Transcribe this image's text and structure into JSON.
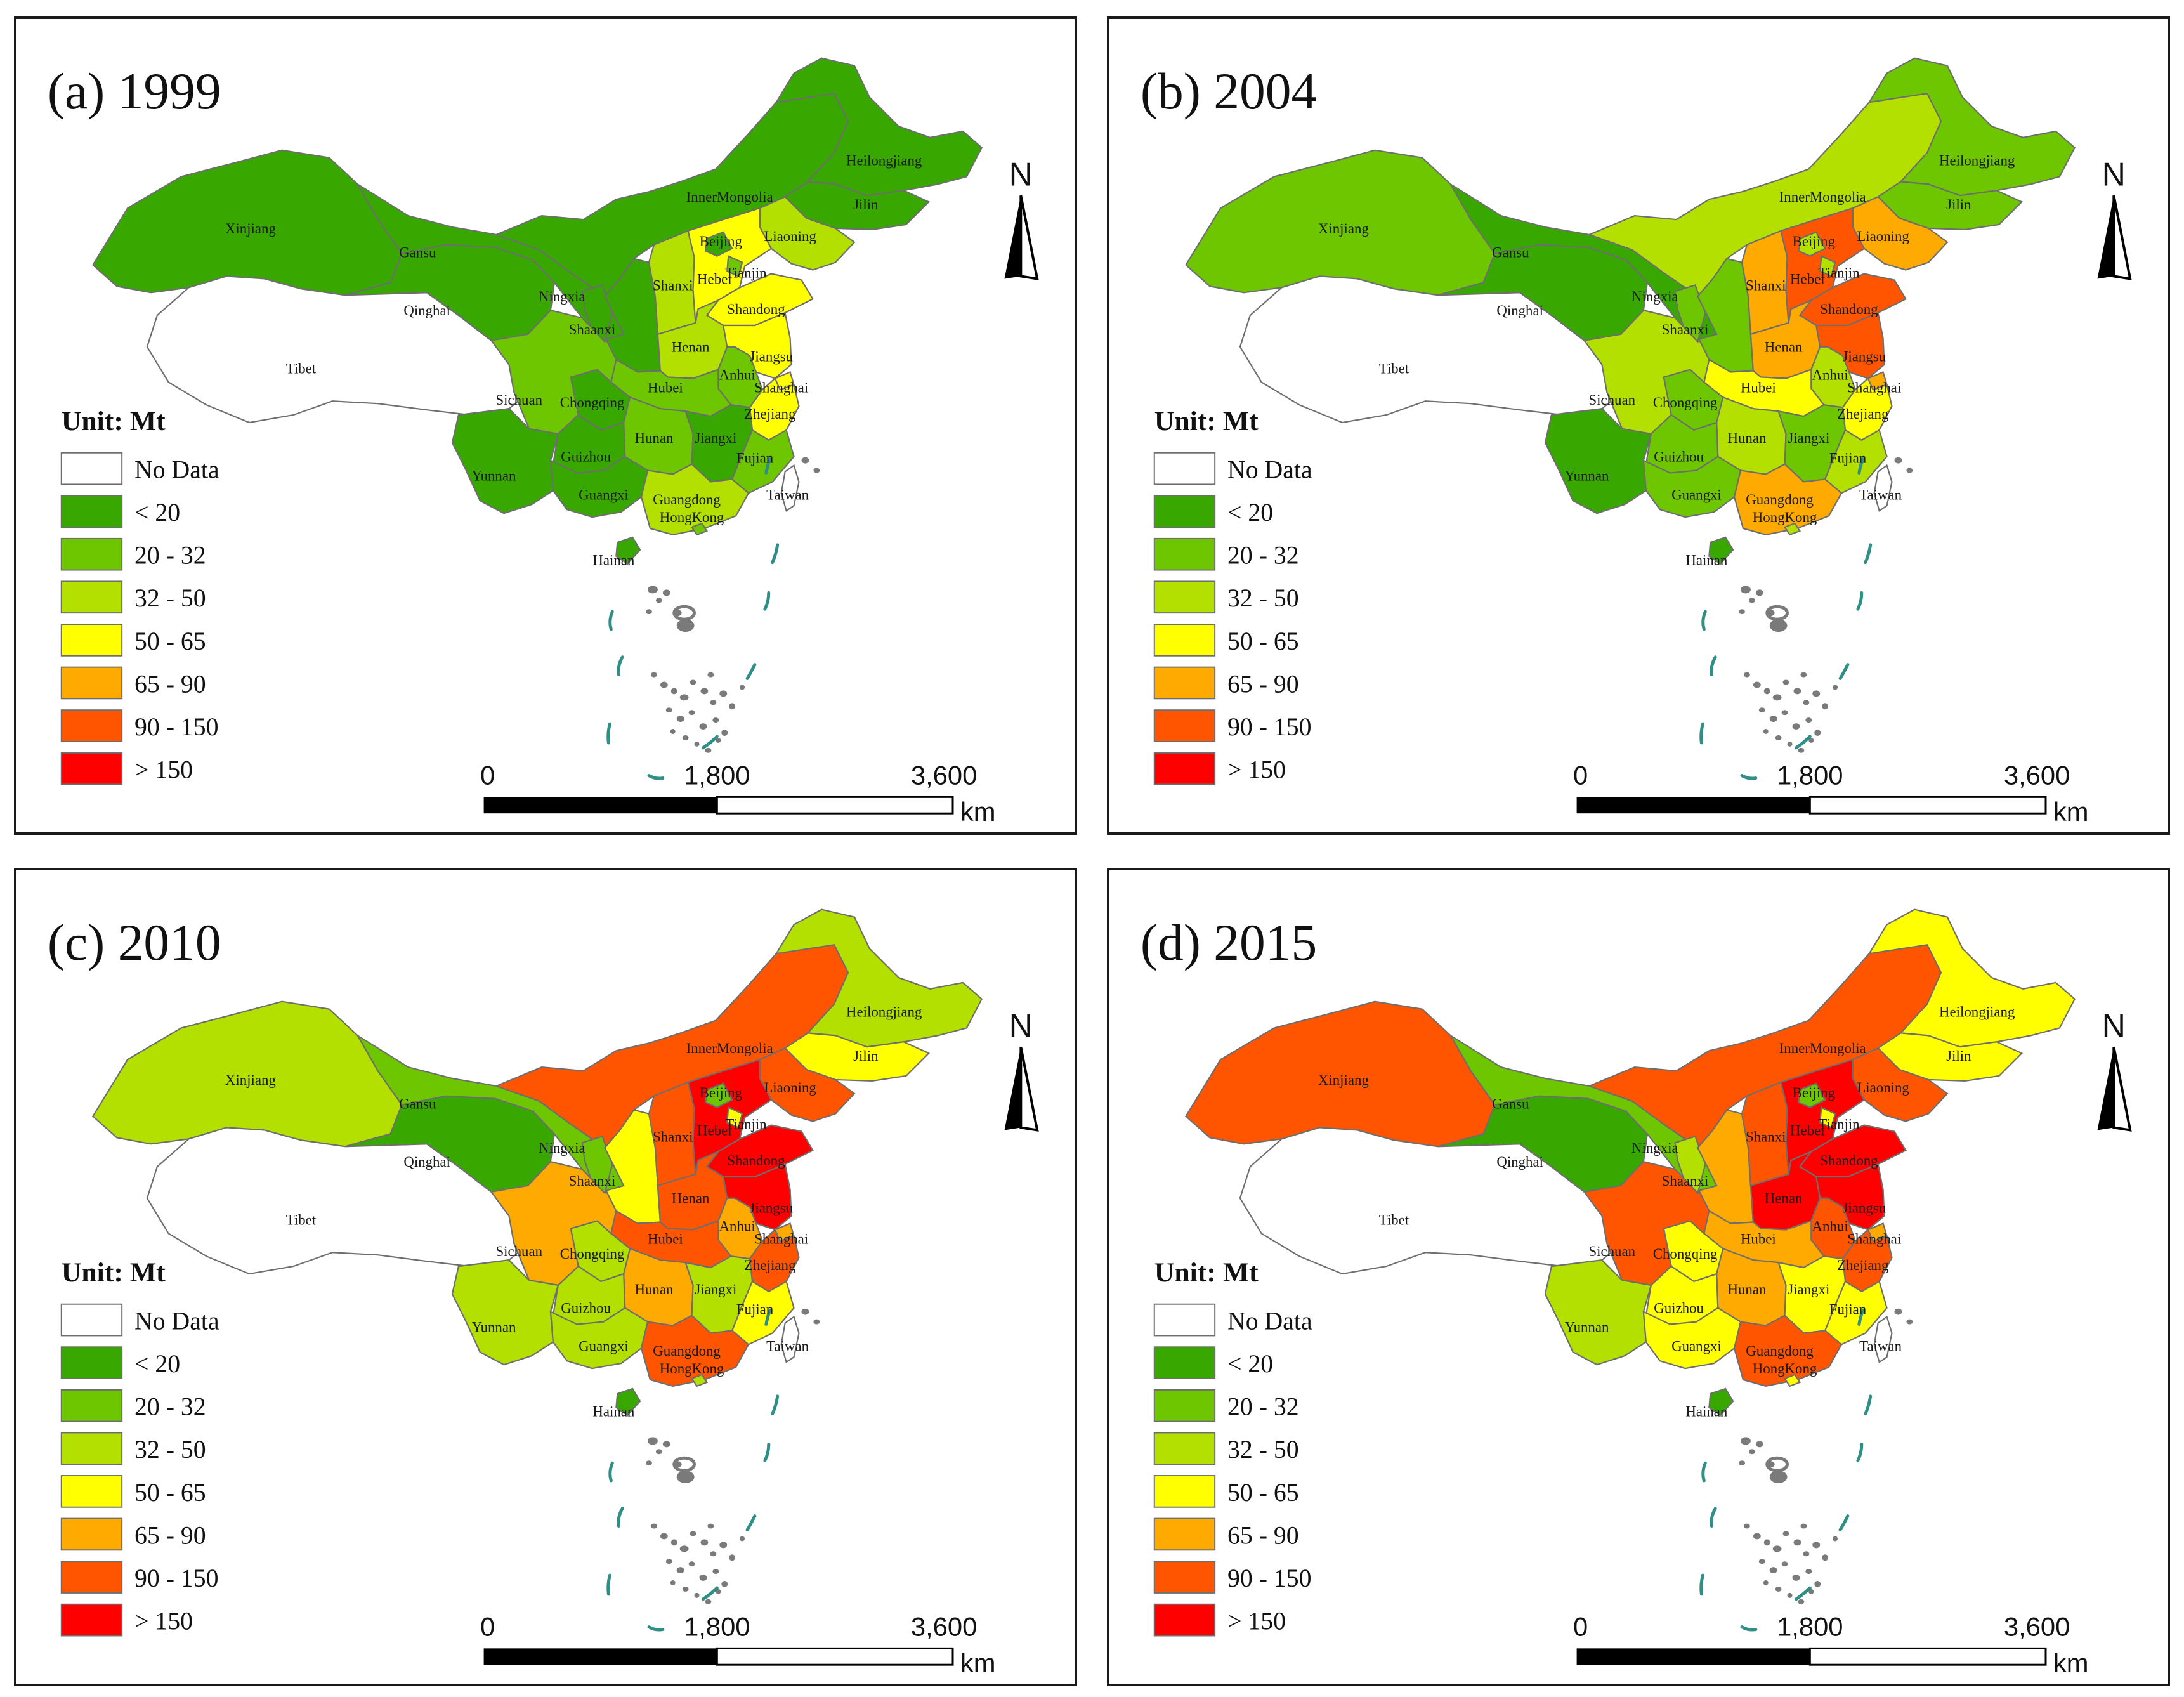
{
  "figure": {
    "legend_title": "Unit: Mt",
    "scale_bar": {
      "labels": [
        "0",
        "1,800",
        "3,600"
      ],
      "unit": "km"
    },
    "north_label": "N"
  },
  "legend": [
    {
      "label": "No Data",
      "color": "#ffffff"
    },
    {
      "label": "< 20",
      "color": "#38a800"
    },
    {
      "label": "20 - 32",
      "color": "#6ec600"
    },
    {
      "label": "32 - 50",
      "color": "#b4e000"
    },
    {
      "label": "50 - 65",
      "color": "#ffff00"
    },
    {
      "label": "65 - 90",
      "color": "#ffaa00"
    },
    {
      "label": "90 - 150",
      "color": "#ff5500"
    },
    {
      "label": "> 150",
      "color": "#ff0000"
    }
  ],
  "panels": [
    {
      "title": "(a) 1999",
      "classes": {
        "Xinjiang": 1,
        "Tibet": 0,
        "Qinghai": 1,
        "Gansu": 1,
        "InnerMongolia": 1,
        "Heilongjiang": 1,
        "Jilin": 1,
        "Liaoning": 3,
        "Ningxia": 1,
        "Shaanxi": 1,
        "Shanxi": 3,
        "Beijing": 1,
        "Hebei": 4,
        "Tianjin": 2,
        "Shandong": 4,
        "Henan": 3,
        "Jiangsu": 4,
        "Anhui": 2,
        "Shanghai": 4,
        "Hubei": 2,
        "Zhejiang": 4,
        "Sichuan": 2,
        "Chongqing": 1,
        "Hunan": 2,
        "Jiangxi": 1,
        "Fujian": 2,
        "Yunnan": 1,
        "Guizhou": 1,
        "Guangxi": 1,
        "Guangdong": 3,
        "HongKong": 2,
        "Taiwan": 0,
        "Hainan": 1
      }
    },
    {
      "title": "(b) 2004",
      "classes": {
        "Xinjiang": 2,
        "Tibet": 0,
        "Qinghai": 1,
        "Gansu": 1,
        "InnerMongolia": 3,
        "Heilongjiang": 2,
        "Jilin": 2,
        "Liaoning": 5,
        "Ningxia": 2,
        "Shaanxi": 2,
        "Shanxi": 5,
        "Beijing": 3,
        "Hebei": 6,
        "Tianjin": 3,
        "Shandong": 6,
        "Henan": 5,
        "Jiangsu": 6,
        "Anhui": 3,
        "Shanghai": 5,
        "Hubei": 4,
        "Zhejiang": 4,
        "Sichuan": 3,
        "Chongqing": 2,
        "Hunan": 3,
        "Jiangxi": 2,
        "Fujian": 3,
        "Yunnan": 1,
        "Guizhou": 2,
        "Guangxi": 2,
        "Guangdong": 5,
        "HongKong": 3,
        "Taiwan": 0,
        "Hainan": 1
      }
    },
    {
      "title": "(c) 2010",
      "classes": {
        "Xinjiang": 3,
        "Tibet": 0,
        "Qinghai": 1,
        "Gansu": 2,
        "InnerMongolia": 6,
        "Heilongjiang": 3,
        "Jilin": 4,
        "Liaoning": 6,
        "Ningxia": 2,
        "Shaanxi": 4,
        "Shanxi": 6,
        "Beijing": 2,
        "Hebei": 7,
        "Tianjin": 4,
        "Shandong": 7,
        "Henan": 6,
        "Jiangsu": 7,
        "Anhui": 5,
        "Shanghai": 5,
        "Hubei": 6,
        "Zhejiang": 6,
        "Sichuan": 5,
        "Chongqing": 3,
        "Hunan": 5,
        "Jiangxi": 3,
        "Fujian": 4,
        "Yunnan": 3,
        "Guizhou": 3,
        "Guangxi": 3,
        "Guangdong": 6,
        "HongKong": 3,
        "Taiwan": 0,
        "Hainan": 1
      }
    },
    {
      "title": "(d) 2015",
      "classes": {
        "Xinjiang": 6,
        "Tibet": 0,
        "Qinghai": 1,
        "Gansu": 2,
        "InnerMongolia": 6,
        "Heilongjiang": 4,
        "Jilin": 4,
        "Liaoning": 6,
        "Ningxia": 3,
        "Shaanxi": 5,
        "Shanxi": 6,
        "Beijing": 2,
        "Hebei": 7,
        "Tianjin": 4,
        "Shandong": 7,
        "Henan": 7,
        "Jiangsu": 7,
        "Anhui": 6,
        "Shanghai": 5,
        "Hubei": 5,
        "Zhejiang": 6,
        "Sichuan": 6,
        "Chongqing": 4,
        "Hunan": 5,
        "Jiangxi": 4,
        "Fujian": 4,
        "Yunnan": 3,
        "Guizhou": 4,
        "Guangxi": 4,
        "Guangdong": 6,
        "HongKong": 4,
        "Taiwan": 0,
        "Hainan": 1
      }
    }
  ]
}
